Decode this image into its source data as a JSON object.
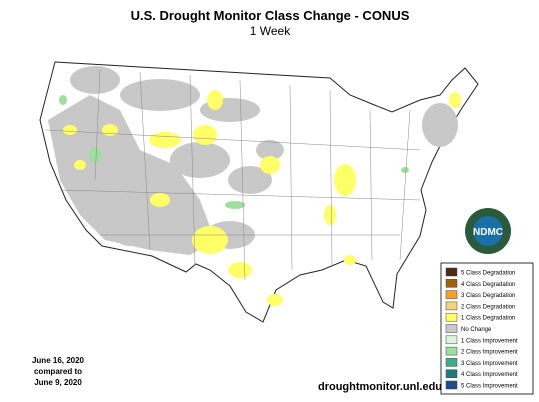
{
  "title": "U.S. Drought Monitor Class Change - CONUS",
  "subtitle": "1 Week",
  "legend": [
    {
      "label": "5 Class Degradation",
      "color": "#4d2b12"
    },
    {
      "label": "4 Class Degradation",
      "color": "#a0620f"
    },
    {
      "label": "3 Class Degradation",
      "color": "#f5a31e"
    },
    {
      "label": "2 Class Degradation",
      "color": "#f7cf80"
    },
    {
      "label": "1 Class Degradation",
      "color": "#ffff66"
    },
    {
      "label": "No Change",
      "color": "#c8c8c8"
    },
    {
      "label": "1 Class Improvement",
      "color": "#dcf5d8"
    },
    {
      "label": "2 Class Improvement",
      "color": "#9ddf9d"
    },
    {
      "label": "3 Class Improvement",
      "color": "#3fae88"
    },
    {
      "label": "4 Class Improvement",
      "color": "#1f7a7a"
    },
    {
      "label": "5 Class Improvement",
      "color": "#1f4e8c"
    }
  ],
  "date": [
    "June 16, 2020",
    "compared to",
    "June 9, 2020"
  ],
  "url": "droughtmonitor.unl.edu",
  "logo": "NDMC"
}
